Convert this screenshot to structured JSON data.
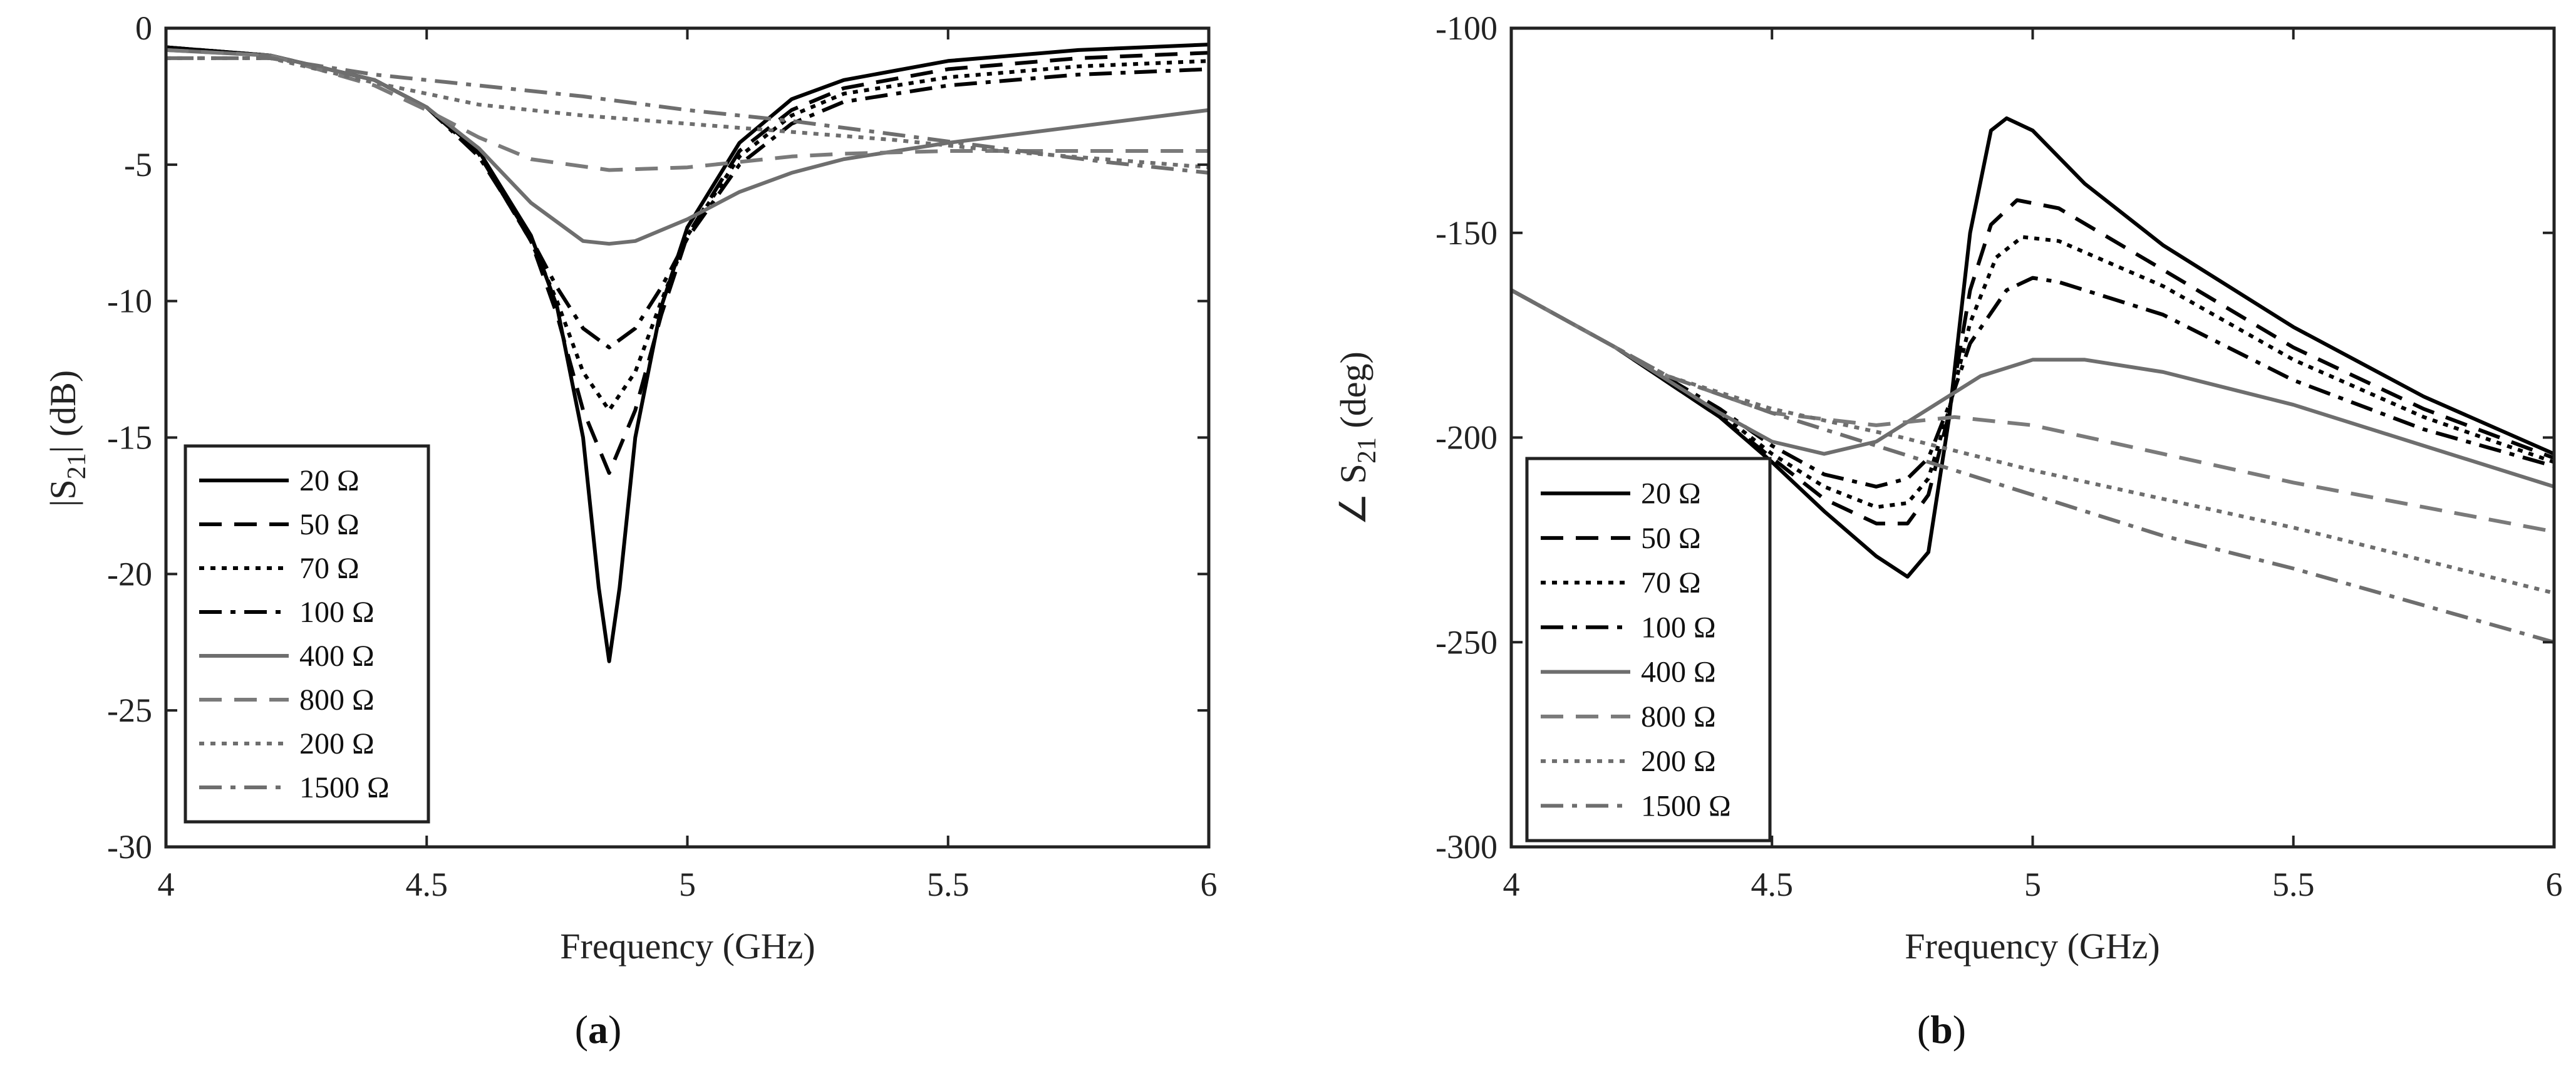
{
  "series_styles": [
    {
      "name": "20 Ω",
      "color": "#000000",
      "dash": "solid"
    },
    {
      "name": "50 Ω",
      "color": "#000000",
      "dash": "dashed"
    },
    {
      "name": "70 Ω",
      "color": "#000000",
      "dash": "dotted"
    },
    {
      "name": "100 Ω",
      "color": "#000000",
      "dash": "dashdot"
    },
    {
      "name": "400 Ω",
      "color": "#6e6e6e",
      "dash": "solid"
    },
    {
      "name": "800 Ω",
      "color": "#7a7a7a",
      "dash": "dashed"
    },
    {
      "name": "200 Ω",
      "color": "#6e6e6e",
      "dash": "dotted"
    },
    {
      "name": "1500 Ω",
      "color": "#6e6e6e",
      "dash": "dashdot"
    }
  ],
  "panels": [
    {
      "label_open": "(",
      "label_letter": "a",
      "label_close": ")"
    },
    {
      "label_open": "(",
      "label_letter": "b",
      "label_close": ")"
    }
  ],
  "chart_data": [
    {
      "type": "line",
      "xlabel": "Frequency (GHz)",
      "ylabel": {
        "prefix": "|S",
        "sub": "21",
        "suffix": "| (dB)"
      },
      "xlim": [
        4,
        6
      ],
      "ylim": [
        -30,
        0
      ],
      "xticks": [
        4,
        4.5,
        5,
        5.5,
        6
      ],
      "xtick_labels": [
        "4",
        "4.5",
        "5",
        "5.5",
        "6"
      ],
      "yticks": [
        0,
        -5,
        -10,
        -15,
        -20,
        -25,
        -30
      ],
      "ytick_labels": [
        "0",
        "-5",
        "-10",
        "-15",
        "-20",
        "-25",
        "-30"
      ],
      "grid": false,
      "legend_position": "lower-left",
      "series": [
        {
          "name": "20 Ω",
          "x": [
            4,
            4.2,
            4.4,
            4.5,
            4.6,
            4.7,
            4.75,
            4.8,
            4.83,
            4.85,
            4.87,
            4.9,
            4.95,
            5,
            5.1,
            5.2,
            5.3,
            5.5,
            5.75,
            6
          ],
          "y": [
            -0.7,
            -1.0,
            -1.9,
            -2.9,
            -4.5,
            -7.6,
            -10.2,
            -15.0,
            -20.5,
            -23.2,
            -20.5,
            -15.0,
            -10.2,
            -7.3,
            -4.2,
            -2.6,
            -1.9,
            -1.2,
            -0.8,
            -0.6
          ]
        },
        {
          "name": "50 Ω",
          "x": [
            4,
            4.2,
            4.4,
            4.5,
            4.6,
            4.7,
            4.75,
            4.8,
            4.85,
            4.9,
            4.95,
            5,
            5.1,
            5.2,
            5.3,
            5.5,
            5.75,
            6
          ],
          "y": [
            -0.7,
            -1.0,
            -1.9,
            -2.9,
            -4.6,
            -7.8,
            -10.5,
            -14.0,
            -16.3,
            -14.0,
            -10.5,
            -7.6,
            -4.5,
            -3.0,
            -2.2,
            -1.5,
            -1.1,
            -0.9
          ]
        },
        {
          "name": "70 Ω",
          "x": [
            4,
            4.2,
            4.4,
            4.5,
            4.6,
            4.7,
            4.75,
            4.8,
            4.85,
            4.9,
            4.95,
            5,
            5.1,
            5.2,
            5.3,
            5.5,
            5.75,
            6
          ],
          "y": [
            -0.7,
            -1.0,
            -1.9,
            -2.9,
            -4.6,
            -7.8,
            -10.0,
            -12.6,
            -14.0,
            -12.6,
            -10.0,
            -7.6,
            -4.7,
            -3.2,
            -2.4,
            -1.8,
            -1.4,
            -1.2
          ]
        },
        {
          "name": "100 Ω",
          "x": [
            4,
            4.2,
            4.4,
            4.5,
            4.6,
            4.7,
            4.75,
            4.8,
            4.85,
            4.9,
            4.95,
            5,
            5.1,
            5.2,
            5.3,
            5.5,
            5.75,
            6
          ],
          "y": [
            -0.7,
            -1.0,
            -1.9,
            -2.9,
            -4.7,
            -7.7,
            -9.5,
            -11.0,
            -11.7,
            -11.0,
            -9.5,
            -7.7,
            -5.0,
            -3.5,
            -2.7,
            -2.1,
            -1.7,
            -1.5
          ]
        },
        {
          "name": "400 Ω",
          "x": [
            4,
            4.2,
            4.4,
            4.5,
            4.6,
            4.7,
            4.8,
            4.85,
            4.9,
            5,
            5.1,
            5.2,
            5.3,
            5.5,
            5.75,
            6
          ],
          "y": [
            -0.8,
            -1.0,
            -1.9,
            -2.9,
            -4.4,
            -6.4,
            -7.8,
            -7.9,
            -7.8,
            -7.0,
            -6.0,
            -5.3,
            -4.8,
            -4.2,
            -3.6,
            -3.0
          ]
        },
        {
          "name": "800 Ω",
          "x": [
            4,
            4.2,
            4.4,
            4.5,
            4.6,
            4.7,
            4.85,
            5,
            5.1,
            5.2,
            5.3,
            5.5,
            5.75,
            6
          ],
          "y": [
            -0.8,
            -1.0,
            -2.1,
            -3.0,
            -4.0,
            -4.8,
            -5.2,
            -5.1,
            -4.9,
            -4.7,
            -4.6,
            -4.5,
            -4.5,
            -4.5
          ]
        },
        {
          "name": "200 Ω",
          "x": [
            4,
            4.2,
            4.4,
            4.6,
            4.8,
            5,
            5.2,
            5.4,
            5.6,
            5.8,
            6
          ],
          "y": [
            -1.1,
            -1.1,
            -2.0,
            -2.8,
            -3.2,
            -3.5,
            -3.8,
            -4.1,
            -4.5,
            -4.8,
            -5.1
          ]
        },
        {
          "name": "1500 Ω",
          "x": [
            4,
            4.2,
            4.4,
            4.6,
            4.8,
            5,
            5.2,
            5.4,
            5.6,
            5.8,
            6
          ],
          "y": [
            -1.1,
            -1.1,
            -1.7,
            -2.1,
            -2.5,
            -3.0,
            -3.4,
            -3.9,
            -4.4,
            -4.9,
            -5.3
          ]
        }
      ]
    },
    {
      "type": "line",
      "xlabel": "Frequency (GHz)",
      "ylabel": {
        "prefix": "∠ S",
        "sub": "21",
        "suffix": " (deg)"
      },
      "xlim": [
        4,
        6
      ],
      "ylim": [
        -300,
        -100
      ],
      "xticks": [
        4,
        4.5,
        5,
        5.5,
        6
      ],
      "xtick_labels": [
        "4",
        "4.5",
        "5",
        "5.5",
        "6"
      ],
      "yticks": [
        -100,
        -150,
        -200,
        -250,
        -300
      ],
      "ytick_labels": [
        "-100",
        "-150",
        "-200",
        "-250",
        "-300"
      ],
      "grid": false,
      "legend_position": "lower-left",
      "series": [
        {
          "name": "20 Ω",
          "x": [
            4,
            4.2,
            4.4,
            4.5,
            4.6,
            4.7,
            4.76,
            4.8,
            4.84,
            4.88,
            4.92,
            4.95,
            5,
            5.1,
            5.25,
            5.5,
            5.75,
            6
          ],
          "y": [
            -164,
            -178,
            -195,
            -206,
            -218,
            -229,
            -234,
            -228,
            -195,
            -150,
            -125,
            -122,
            -125,
            -138,
            -153,
            -173,
            -190,
            -204
          ]
        },
        {
          "name": "50 Ω",
          "x": [
            4,
            4.2,
            4.4,
            4.5,
            4.6,
            4.7,
            4.76,
            4.8,
            4.84,
            4.88,
            4.92,
            4.97,
            5.05,
            5.25,
            5.5,
            5.75,
            6
          ],
          "y": [
            -164,
            -178,
            -195,
            -205,
            -215,
            -221,
            -221,
            -214,
            -194,
            -164,
            -148,
            -142,
            -144,
            -159,
            -178,
            -193,
            -205
          ]
        },
        {
          "name": "70 Ω",
          "x": [
            4,
            4.2,
            4.4,
            4.5,
            4.6,
            4.7,
            4.76,
            4.8,
            4.84,
            4.88,
            4.93,
            4.98,
            5.05,
            5.25,
            5.5,
            5.75,
            6
          ],
          "y": [
            -164,
            -178,
            -194,
            -204,
            -212,
            -217,
            -216,
            -210,
            -193,
            -172,
            -156,
            -151,
            -152,
            -163,
            -181,
            -195,
            -206
          ]
        },
        {
          "name": "100 Ω",
          "x": [
            4,
            4.2,
            4.4,
            4.5,
            4.6,
            4.7,
            4.76,
            4.8,
            4.84,
            4.88,
            4.95,
            5,
            5.05,
            5.25,
            5.5,
            5.75,
            6
          ],
          "y": [
            -164,
            -178,
            -193,
            -202,
            -209,
            -212,
            -210,
            -205,
            -192,
            -177,
            -164,
            -161,
            -162,
            -170,
            -186,
            -198,
            -207
          ]
        },
        {
          "name": "400 Ω",
          "x": [
            4,
            4.2,
            4.3,
            4.4,
            4.5,
            4.6,
            4.7,
            4.8,
            4.9,
            5,
            5.1,
            5.25,
            5.5,
            5.75,
            6
          ],
          "y": [
            -164,
            -178,
            -186,
            -194,
            -201,
            -204,
            -201,
            -193,
            -185,
            -181,
            -181,
            -184,
            -192,
            -202,
            -212
          ]
        },
        {
          "name": "800 Ω",
          "x": [
            4,
            4.2,
            4.3,
            4.5,
            4.7,
            4.85,
            5,
            5.25,
            5.5,
            5.75,
            6
          ],
          "y": [
            -164,
            -178,
            -185,
            -194,
            -197,
            -195,
            -197,
            -204,
            -211,
            -217,
            -223
          ]
        },
        {
          "name": "200 Ω",
          "x": [
            4,
            4.2,
            4.3,
            4.5,
            4.75,
            5,
            5.25,
            5.5,
            5.75,
            6
          ],
          "y": [
            -164,
            -178,
            -185,
            -193,
            -200,
            -208,
            -215,
            -222,
            -230,
            -238
          ]
        },
        {
          "name": "1500 Ω",
          "x": [
            4,
            4.2,
            4.3,
            4.5,
            4.75,
            5,
            5.25,
            5.5,
            5.75,
            6
          ],
          "y": [
            -164,
            -178,
            -185,
            -194,
            -204,
            -214,
            -224,
            -232,
            -241,
            -250
          ]
        }
      ]
    }
  ]
}
